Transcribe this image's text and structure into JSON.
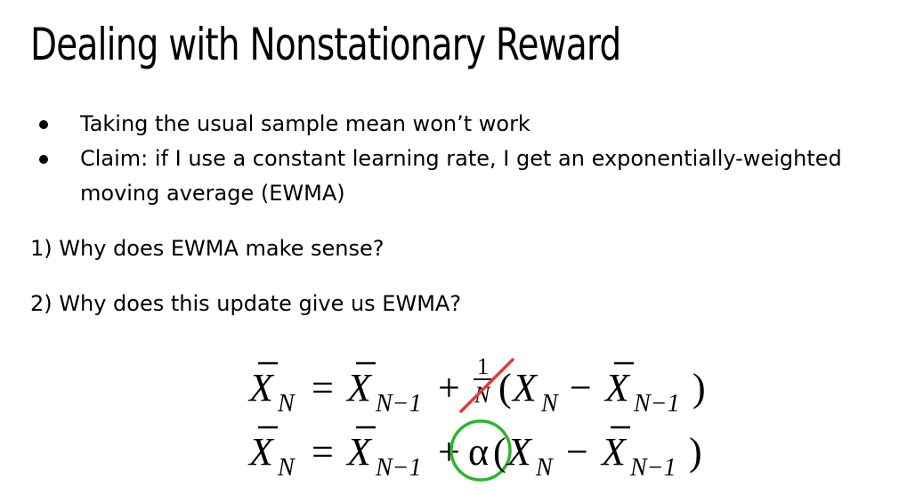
{
  "slide": {
    "title": "Dealing with Nonstationary Reward",
    "bullets": [
      "Taking the usual sample mean won’t work",
      "Claim: if I use a constant learning rate, I get an exponentially-weighted moving average (EWMA)"
    ],
    "questions": [
      "1) Why does EWMA make sense?",
      "2) Why does this update give us EWMA?"
    ]
  },
  "equations": {
    "var": "X",
    "sub_n": "N",
    "sub_n_minus_1": "N−1",
    "equals": "=",
    "plus": "+",
    "minus": "−",
    "open_paren": "(",
    "close_paren": ")",
    "frac_numerator": "1",
    "frac_denominator": "N",
    "alpha": "α",
    "strike_color": "#e53935",
    "circle_color": "#2db52d"
  }
}
